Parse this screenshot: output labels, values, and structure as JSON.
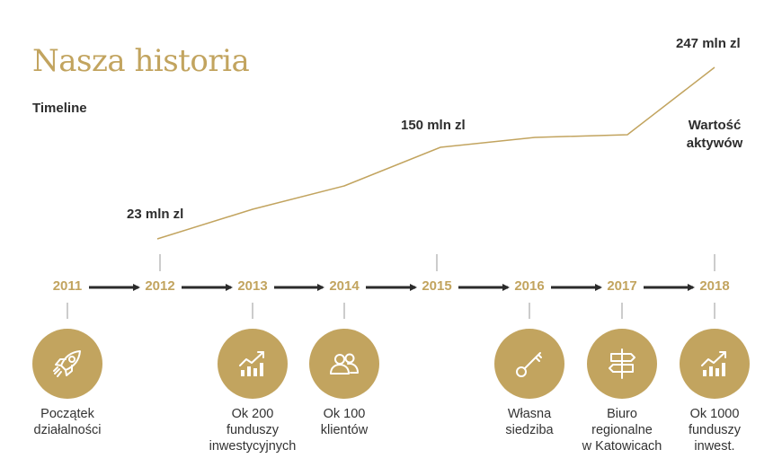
{
  "header": {
    "title": "Nasza historia",
    "subtitle": "Timeline"
  },
  "asset_label": [
    "Wartość",
    "aktywów"
  ],
  "colors": {
    "gold": "#c2a45f",
    "dark": "#2d2d2d",
    "arrow": "#2b2b2b"
  },
  "timeline": {
    "years": [
      "2011",
      "2012",
      "2013",
      "2014",
      "2015",
      "2016",
      "2017",
      "2018"
    ]
  },
  "asset_values": [
    {
      "year": "2012",
      "label": "23 mln zl"
    },
    {
      "year": "2015",
      "label": "150 mln zl"
    },
    {
      "year": "2018",
      "label": "247 mln zl"
    }
  ],
  "milestones": [
    {
      "year": "2011",
      "icon": "rocket-icon",
      "lines": [
        "Początek",
        "działalności"
      ]
    },
    {
      "year": "2013",
      "icon": "growth-chart-icon",
      "lines": [
        "Ok 200",
        "funduszy",
        "inwestycyjnych"
      ]
    },
    {
      "year": "2014",
      "icon": "people-icon",
      "lines": [
        "Ok 100",
        "klientów"
      ]
    },
    {
      "year": "2016",
      "icon": "key-icon",
      "lines": [
        "Własna",
        "siedziba"
      ]
    },
    {
      "year": "2017",
      "icon": "signpost-icon",
      "lines": [
        "Biuro",
        "regionalne",
        "w Katowicach"
      ]
    },
    {
      "year": "2018",
      "icon": "growth-chart-icon",
      "lines": [
        "Ok 1000",
        "funduszy",
        "inwest."
      ]
    }
  ]
}
